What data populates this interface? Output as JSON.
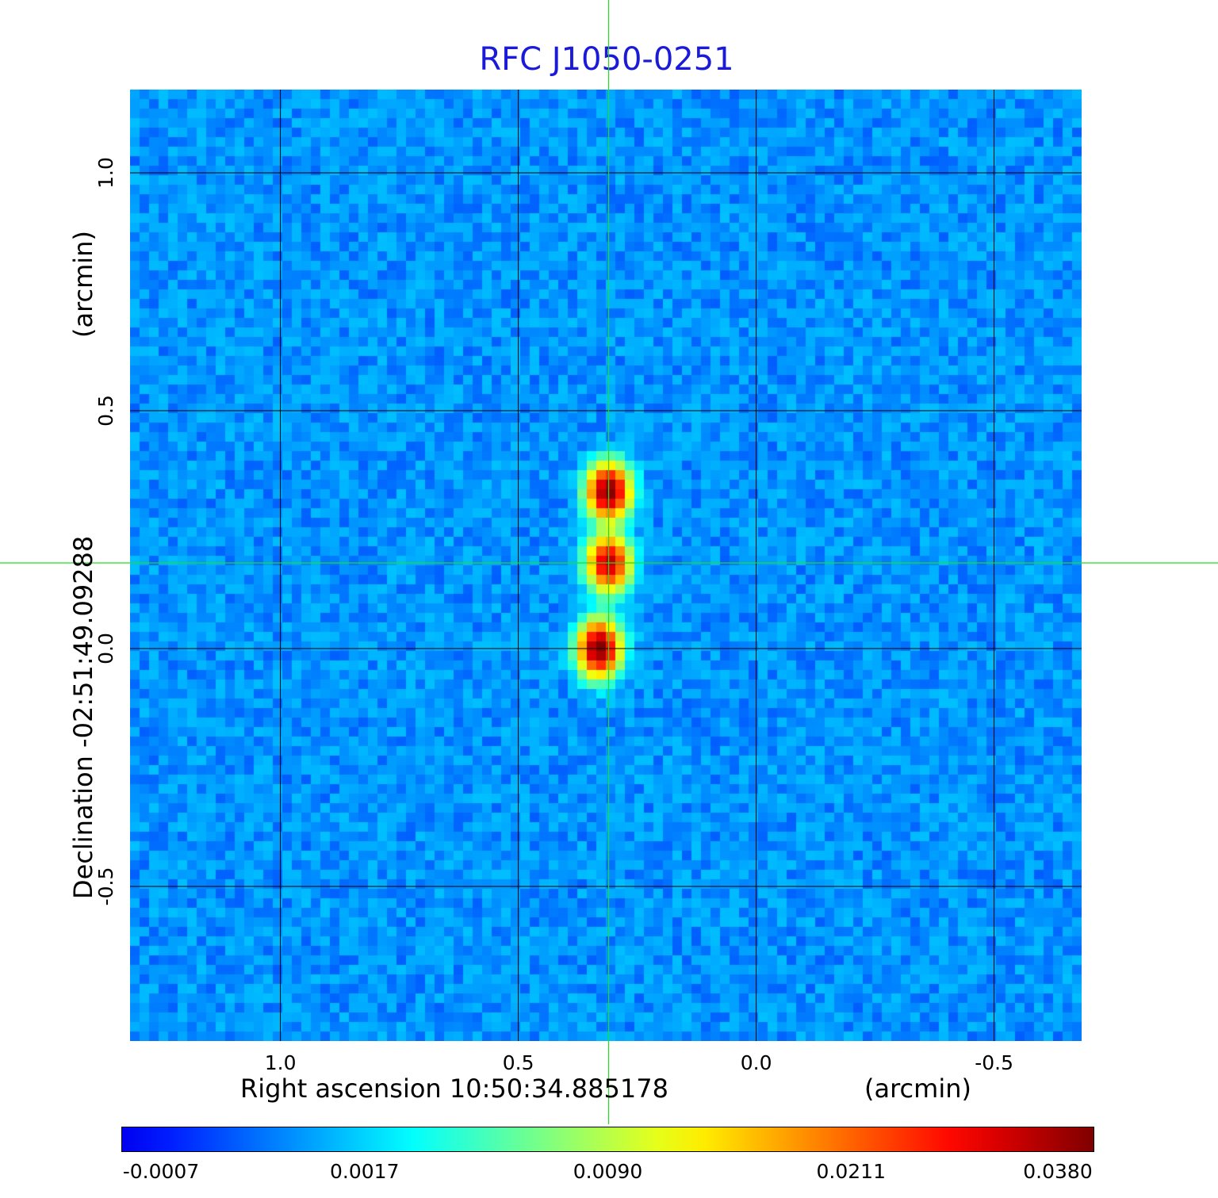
{
  "chart_data": {
    "type": "heatmap",
    "title": "RFC J1050-0251",
    "colormap": "jet",
    "xlabel": "Right ascension  10:50:34.885178",
    "xunit": "(arcmin)",
    "ylabel": "Declination  -02:51:49.09288",
    "yunit": "(arcmin)",
    "xlim": [
      1.316,
      -0.684
    ],
    "ylim": [
      -0.825,
      1.175
    ],
    "x_ticks": [
      1.0,
      0.5,
      0.0,
      -0.5
    ],
    "x_tick_labels": [
      "1.0",
      "0.5",
      "0.0",
      "-0.5"
    ],
    "y_ticks": [
      1.0,
      0.5,
      0.0,
      -0.5
    ],
    "y_tick_labels": [
      "1.0",
      "0.5",
      "0.0",
      "-0.5"
    ],
    "grid": true,
    "crosshair": {
      "x": 0.31,
      "y": 0.18,
      "color": "#22dd22"
    },
    "sources": [
      {
        "x": 0.31,
        "y": 0.33,
        "peak": 0.038
      },
      {
        "x": 0.31,
        "y": 0.18,
        "peak": 0.032
      },
      {
        "x": 0.33,
        "y": 0.0,
        "peak": 0.038
      }
    ],
    "colorbar": {
      "range": [
        -0.0007,
        0.038
      ],
      "labels": [
        "-0.0007",
        "0.0017",
        "0.0090",
        "0.0211",
        "0.0380"
      ]
    }
  }
}
